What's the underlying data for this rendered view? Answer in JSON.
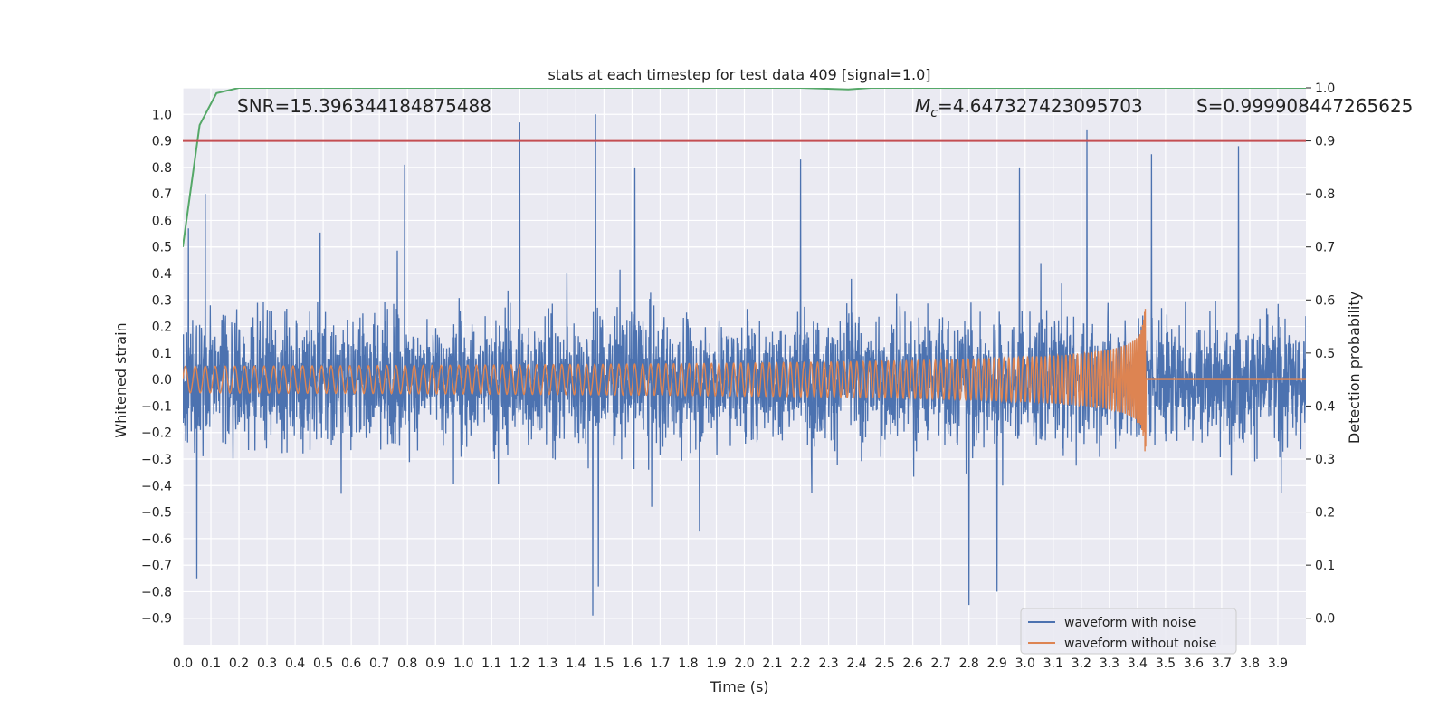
{
  "chart_data": {
    "type": "line",
    "title": "stats at each timestep for test data 409 [signal=1.0]",
    "xlabel": "Time (s)",
    "ylabel": "Whitened strain",
    "y2label": "Detection probability",
    "xlim": [
      0.0,
      4.0
    ],
    "ylim": [
      -1.0,
      1.1
    ],
    "y2lim": [
      -0.05,
      1.0
    ],
    "xticks": [
      0.0,
      0.1,
      0.2,
      0.3,
      0.4,
      0.5,
      0.6,
      0.7,
      0.8,
      0.9,
      1.0,
      1.1,
      1.2,
      1.3,
      1.4,
      1.5,
      1.6,
      1.7,
      1.8,
      1.9,
      2.0,
      2.1,
      2.2,
      2.3,
      2.4,
      2.5,
      2.6,
      2.7,
      2.8,
      2.9,
      3.0,
      3.1,
      3.2,
      3.3,
      3.4,
      3.5,
      3.6,
      3.7,
      3.8,
      3.9
    ],
    "yticks": [
      -0.9,
      -0.8,
      -0.7,
      -0.6,
      -0.5,
      -0.4,
      -0.3,
      -0.2,
      -0.1,
      0.0,
      0.1,
      0.2,
      0.3,
      0.4,
      0.5,
      0.6,
      0.7,
      0.8,
      0.9,
      1.0
    ],
    "y2ticks": [
      0.0,
      0.1,
      0.2,
      0.3,
      0.4,
      0.5,
      0.6,
      0.7,
      0.8,
      0.9,
      1.0
    ],
    "tick_format": "1",
    "annotations": {
      "snr": "SNR=15.396344184875488",
      "mc_symbol": "M",
      "mc_sub": "c",
      "mc_value": "=4.647327423095703",
      "s": "S=0.999908447265625"
    },
    "series": [
      {
        "name": "waveform with noise",
        "axis": "left",
        "color": "#4c72b0",
        "kind": "noise",
        "amplitude_envelope": 0.35,
        "notable_peaks": [
          {
            "x": 0.02,
            "y": 0.57
          },
          {
            "x": 0.05,
            "y": -0.75
          },
          {
            "x": 0.08,
            "y": 0.7
          },
          {
            "x": 0.79,
            "y": 0.81
          },
          {
            "x": 1.2,
            "y": 0.97
          },
          {
            "x": 1.46,
            "y": -0.89
          },
          {
            "x": 1.47,
            "y": 1.0
          },
          {
            "x": 1.48,
            "y": -0.78
          },
          {
            "x": 1.61,
            "y": 0.8
          },
          {
            "x": 2.2,
            "y": 0.83
          },
          {
            "x": 2.8,
            "y": -0.85
          },
          {
            "x": 2.9,
            "y": -0.8
          },
          {
            "x": 2.98,
            "y": 0.8
          },
          {
            "x": 3.22,
            "y": 0.94
          },
          {
            "x": 3.45,
            "y": 0.85
          },
          {
            "x": 3.76,
            "y": 0.88
          }
        ]
      },
      {
        "name": "waveform without noise",
        "axis": "left",
        "color": "#dd8452",
        "kind": "chirp",
        "start_amplitude": 0.05,
        "end_amplitude": 0.4,
        "merger_time": 3.43
      },
      {
        "name": "detection probability",
        "axis": "right",
        "color": "#55a868",
        "x": [
          0.0,
          0.06,
          0.12,
          0.2,
          0.3,
          1.0,
          2.0,
          2.2,
          2.37,
          2.45,
          3.0,
          4.0
        ],
        "values": [
          0.7,
          0.93,
          0.99,
          1.0,
          1.0,
          1.0,
          1.0,
          1.0,
          0.997,
          1.0,
          1.0,
          1.0
        ]
      },
      {
        "name": "threshold",
        "axis": "right",
        "color": "#c44e52",
        "x": [
          0.0,
          4.0
        ],
        "values": [
          0.9,
          0.9
        ]
      }
    ],
    "legend": {
      "position": "bottom-right",
      "entries": [
        {
          "label": "waveform with noise",
          "color": "#4c72b0"
        },
        {
          "label": "waveform without noise",
          "color": "#dd8452"
        }
      ]
    }
  }
}
